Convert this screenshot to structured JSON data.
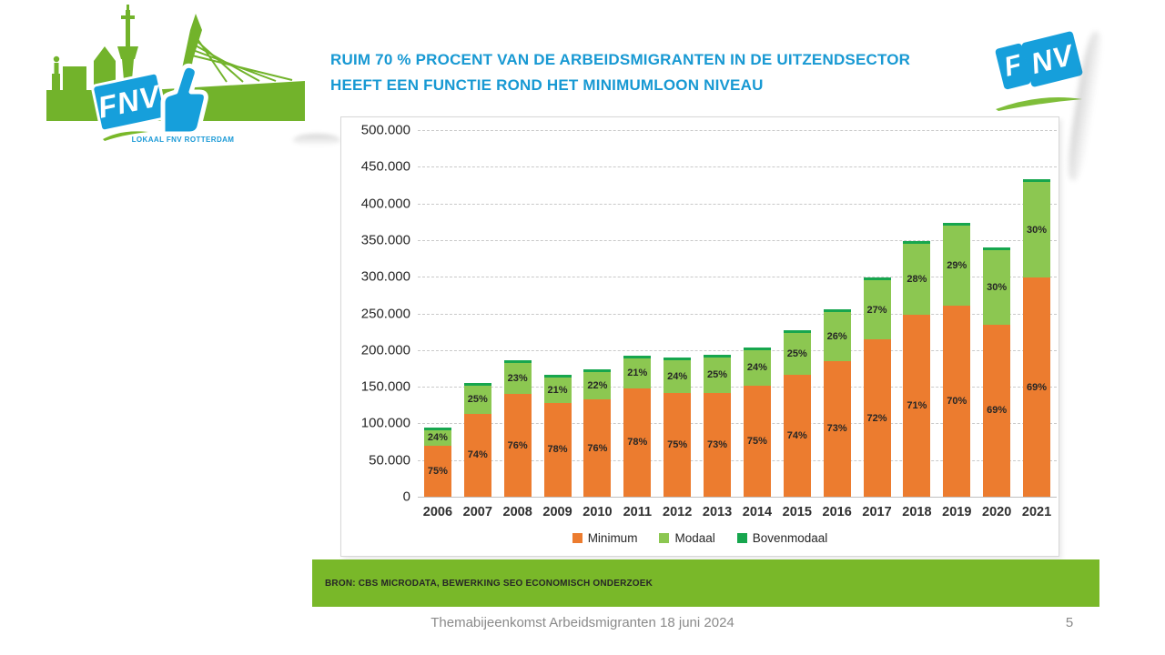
{
  "slide": {
    "title_line1": "RUIM 70 % PROCENT VAN DE ARBEIDSMIGRANTEN IN DE UITZENDSECTOR",
    "title_line2": "HEEFT EEN FUNCTIE ROND HET MINIMUMLOON NIVEAU",
    "source_bar": "BRON: CBS MICRODATA, BEWERKING SEO ECONOMISCH ONDERZOEK",
    "footer": "Themabijeenkomst Arbeidsmigranten 18 juni 2024",
    "page_number": "5"
  },
  "logos": {
    "fnv_text": "FNV",
    "fnv_f": "F",
    "fnv_nv": "NV",
    "local_caption": "LOKAAL FNV ROTTERDAM"
  },
  "colors": {
    "title_blue": "#1899D3",
    "fnv_blue": "#169FDB",
    "fnv_green": "#79B829",
    "skyline_green": "#72B32B",
    "minimum_orange": "#EC7C2F",
    "modaal_green": "#8CC751",
    "bovenmodaal_green": "#17A64E",
    "footer_gray": "#8A8A8A"
  },
  "chart_data": {
    "type": "bar",
    "stacked": true,
    "title": "",
    "xlabel": "",
    "ylabel": "",
    "ylim": [
      0,
      500000
    ],
    "grid": "horizontal-dashed",
    "legend_position": "bottom",
    "y_ticks": [
      "500.000",
      "450.000",
      "400.000",
      "350.000",
      "300.000",
      "250.000",
      "200.000",
      "150.000",
      "100.000",
      "50.000",
      "0"
    ],
    "categories": [
      "2006",
      "2007",
      "2008",
      "2009",
      "2010",
      "2011",
      "2012",
      "2013",
      "2014",
      "2015",
      "2016",
      "2017",
      "2018",
      "2019",
      "2020",
      "2021"
    ],
    "totals": [
      92000,
      153000,
      184000,
      164000,
      174000,
      190000,
      188000,
      194000,
      202000,
      225000,
      254000,
      298000,
      349000,
      373000,
      340000,
      433000
    ],
    "series": [
      {
        "name": "Minimum",
        "color": "#EC7C2F",
        "pct": [
          75,
          74,
          76,
          78,
          76,
          78,
          75,
          73,
          75,
          74,
          73,
          72,
          71,
          70,
          69,
          69
        ],
        "values": [
          69000,
          113000,
          140000,
          128000,
          132000,
          148000,
          141000,
          142000,
          151000,
          167000,
          185000,
          215000,
          248000,
          261000,
          235000,
          299000
        ]
      },
      {
        "name": "Modaal",
        "color": "#8CC751",
        "pct": [
          24,
          25,
          23,
          21,
          22,
          21,
          24,
          25,
          24,
          25,
          26,
          27,
          28,
          29,
          30,
          30
        ],
        "values": [
          22000,
          38000,
          42000,
          34000,
          38000,
          40000,
          45000,
          49000,
          48000,
          56000,
          66000,
          80000,
          98000,
          108000,
          102000,
          130000
        ]
      },
      {
        "name": "Bovenmodaal",
        "color": "#17A64E",
        "pct": [
          1,
          1,
          1,
          1,
          2,
          1,
          1,
          2,
          1,
          1,
          1,
          1,
          1,
          1,
          1,
          1
        ],
        "values": [
          1000,
          2000,
          2000,
          2000,
          4000,
          2000,
          2000,
          3000,
          3000,
          2000,
          3000,
          3000,
          3000,
          4000,
          3000,
          4000
        ]
      }
    ]
  }
}
